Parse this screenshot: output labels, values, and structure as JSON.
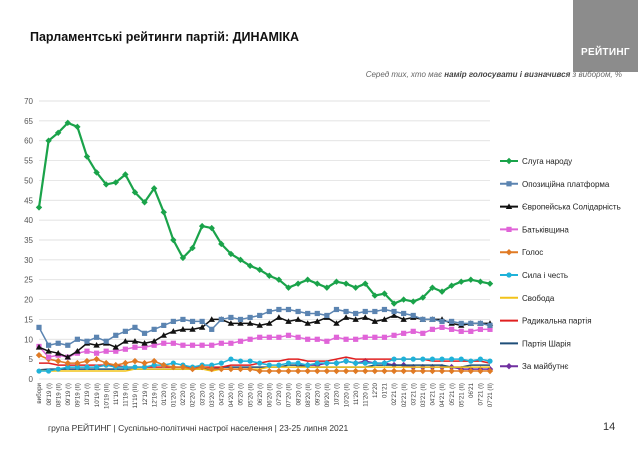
{
  "header": {
    "title": "Парламентські рейтинги партій: ДИНАМІКА",
    "logo_text": "РЕЙТИНГ",
    "subtitle_prefix": "Серед тих, хто має ",
    "subtitle_bold": "намір голосувати і визначився",
    "subtitle_suffix": " з вибором, %"
  },
  "footer": {
    "text": "група РЕЙТИНГ | Суспільно-політичні настрої населення  | 23-25 липня 2021",
    "page_number": "14"
  },
  "chart_data": {
    "type": "line",
    "ylim": [
      0,
      70
    ],
    "yticks": [
      0,
      5,
      10,
      15,
      20,
      25,
      30,
      35,
      40,
      45,
      50,
      55,
      60,
      65,
      70
    ],
    "grid": true,
    "legend_position": "right",
    "categories": [
      "вибори",
      "08'19 (I)",
      "08'19 (II)",
      "09'19 (I)",
      "09'19 (II)",
      "10'19 (I)",
      "10'19 (II)",
      "10'19 (III)",
      "11'19 (I)",
      "11'19 (II)",
      "11'19 (III)",
      "12'19 (I)",
      "12'19 (II)",
      "01'20 (I)",
      "01'20 (II)",
      "02'20 (I)",
      "02'20 (II)",
      "03'20 (I)",
      "03'20 (II)",
      "04'20 (I)",
      "04'20 (II)",
      "05'20 (I)",
      "05'20 (II)",
      "06'20 (I)",
      "06'20 (II)",
      "07'20 (I)",
      "07'20 (II)",
      "08'20 (I)",
      "08'20 (II)",
      "09'20 (I)",
      "09'20 (II)",
      "10'20 (I)",
      "10'20 (II)",
      "11'20 (I)",
      "11'20 (II)",
      "12'20",
      "01'21",
      "02'21 (I)",
      "02'21 (II)",
      "03'21 (I)",
      "03'21 (II)",
      "04'21 (I)",
      "04'21 (II)",
      "05'21 (I)",
      "05'21 (II)",
      "06'21",
      "07'21 (I)",
      "07'21 (II)"
    ],
    "series": [
      {
        "name": "Слуга народу",
        "color": "#1aa34a",
        "marker": "diamond",
        "values": [
          43.2,
          60,
          62,
          64.5,
          63.5,
          56,
          52,
          49,
          49.5,
          51.5,
          47,
          44.5,
          48,
          42,
          35,
          30.5,
          33,
          38.5,
          38,
          34,
          31.5,
          30,
          28.5,
          27.5,
          26,
          25,
          23,
          24,
          25,
          24,
          23,
          24.5,
          24,
          23,
          24,
          21,
          21.5,
          19,
          20,
          19.5,
          20.5,
          23,
          22,
          23.5,
          24.5,
          25,
          24.5,
          24
        ]
      },
      {
        "name": "Опозиційна платформа",
        "color": "#5b84b1",
        "marker": "square",
        "values": [
          13,
          8.5,
          9,
          8.5,
          10,
          9.5,
          10.5,
          9.5,
          11,
          12,
          13,
          11.5,
          12.5,
          13.5,
          14.5,
          15,
          14.5,
          14.5,
          12.5,
          15,
          15.5,
          15,
          15.5,
          16,
          17,
          17.5,
          17.5,
          17,
          16.5,
          16.5,
          16,
          17.5,
          17,
          16.5,
          17,
          17,
          17.5,
          17,
          16.5,
          16,
          15,
          15,
          14.5,
          14.5,
          14,
          14,
          14,
          13.5
        ]
      },
      {
        "name": "Європейська Солідарність",
        "color": "#111111",
        "marker": "triangle",
        "values": [
          8,
          7,
          6.5,
          5.5,
          7,
          9,
          8.5,
          9,
          8,
          9.5,
          9.5,
          9,
          9.5,
          11,
          12,
          12.5,
          12.5,
          13,
          15,
          15,
          14,
          14,
          14,
          13.5,
          14,
          15.5,
          14.5,
          15,
          14,
          14.5,
          15.5,
          14,
          15.5,
          15,
          15.5,
          14.5,
          15,
          16,
          15,
          15.5,
          15,
          15,
          15,
          14,
          13.5,
          14,
          14,
          14
        ]
      },
      {
        "name": "Батьківщина",
        "color": "#e064d8",
        "marker": "square",
        "values": [
          8.2,
          5.5,
          6,
          5.5,
          6.5,
          7,
          6.5,
          7,
          7,
          7.5,
          8,
          8,
          8.5,
          9,
          9,
          8.5,
          8.5,
          8.5,
          8.5,
          9,
          9,
          9.5,
          10,
          10.5,
          10.5,
          10.5,
          11,
          10.5,
          10,
          10,
          9.5,
          10.5,
          10,
          10,
          10.5,
          10.5,
          10.5,
          11,
          11.5,
          12,
          11.5,
          12.5,
          13,
          12.5,
          12,
          12,
          12.5,
          12.5
        ]
      },
      {
        "name": "Голос",
        "color": "#e07a24",
        "marker": "diamond",
        "values": [
          6,
          5,
          4.5,
          4,
          4,
          4.5,
          5,
          4,
          3.5,
          4,
          4.5,
          4,
          4.5,
          3.5,
          3,
          3,
          2.5,
          3,
          2.5,
          2.5,
          2.5,
          2.5,
          2.5,
          2,
          2,
          2,
          2,
          2,
          2,
          2,
          2,
          2,
          2,
          2,
          2,
          2,
          2,
          2,
          2,
          2,
          2,
          2,
          2,
          2,
          2,
          2,
          2,
          2
        ]
      },
      {
        "name": "Сила і честь",
        "color": "#1fb2d9",
        "marker": "circle",
        "values": [
          2,
          2,
          2.5,
          3,
          3,
          3,
          3,
          3.5,
          3,
          3,
          3,
          3,
          3.5,
          3.5,
          4,
          3.5,
          3,
          3.5,
          3.5,
          4,
          5,
          4.5,
          4.5,
          4,
          3.5,
          3.5,
          4,
          4,
          3.5,
          4,
          4,
          4,
          4.5,
          4,
          4,
          4,
          4,
          5,
          5,
          5,
          5,
          5,
          5,
          5,
          5,
          4.5,
          5,
          4.5
        ]
      },
      {
        "name": "Свобода",
        "color": "#f2c31a",
        "marker": "none",
        "values": [
          2.2,
          2,
          2,
          2,
          2,
          2,
          2,
          2,
          2,
          2,
          2.5,
          2.5,
          2.5,
          2.5,
          2.5,
          2.5,
          2.5,
          2.5,
          2,
          2.5,
          2.5,
          2.5,
          2.5,
          2.5,
          3,
          3,
          3,
          3,
          3,
          3,
          3,
          3,
          3,
          3,
          3,
          3,
          3,
          3,
          3,
          3,
          3,
          3,
          3,
          3,
          3,
          3,
          3,
          3
        ]
      },
      {
        "name": "Радикальна партія",
        "color": "#e02020",
        "marker": "none",
        "values": [
          4,
          4,
          3.5,
          3.5,
          3.5,
          3.5,
          3.5,
          3.5,
          3.5,
          3,
          3,
          3,
          3,
          3,
          3,
          3,
          3,
          3,
          3,
          3,
          3.5,
          3.5,
          3.5,
          4,
          4.5,
          4.5,
          5,
          5,
          4.5,
          4.5,
          4.5,
          5,
          5.5,
          5,
          5,
          5,
          5,
          5,
          5,
          5,
          5,
          4.5,
          4.5,
          4.5,
          4.5,
          4.5,
          4.5,
          4
        ]
      },
      {
        "name": "Партія Шарія",
        "color": "#1f4e79",
        "marker": "none",
        "values": [
          2.3,
          2.5,
          2.5,
          2.5,
          2.5,
          2.5,
          2.5,
          2.5,
          2.5,
          2.5,
          2.5,
          2.5,
          2.5,
          2.5,
          2.5,
          2.5,
          2.5,
          2.5,
          2.5,
          3,
          3,
          3,
          3,
          3,
          3,
          3,
          3.5,
          3.5,
          3,
          3,
          3,
          3,
          3,
          3,
          3,
          3.5,
          3.5,
          3.5,
          3.5,
          3.5,
          3.5,
          3.5,
          3.5,
          3,
          3,
          3.5,
          3.5,
          3.5
        ]
      },
      {
        "name": "За майбутнє",
        "color": "#7030a0",
        "marker": "diamond",
        "values": [
          null,
          null,
          null,
          null,
          null,
          null,
          null,
          null,
          null,
          null,
          null,
          null,
          null,
          null,
          null,
          null,
          null,
          null,
          null,
          null,
          null,
          null,
          null,
          null,
          null,
          null,
          null,
          3.5,
          3.5,
          3.5,
          4,
          4,
          4.5,
          4,
          4.5,
          4,
          4,
          3.5,
          3.5,
          3,
          3,
          3,
          3,
          3,
          2.5,
          2.5,
          2.5,
          2.5
        ]
      }
    ]
  }
}
